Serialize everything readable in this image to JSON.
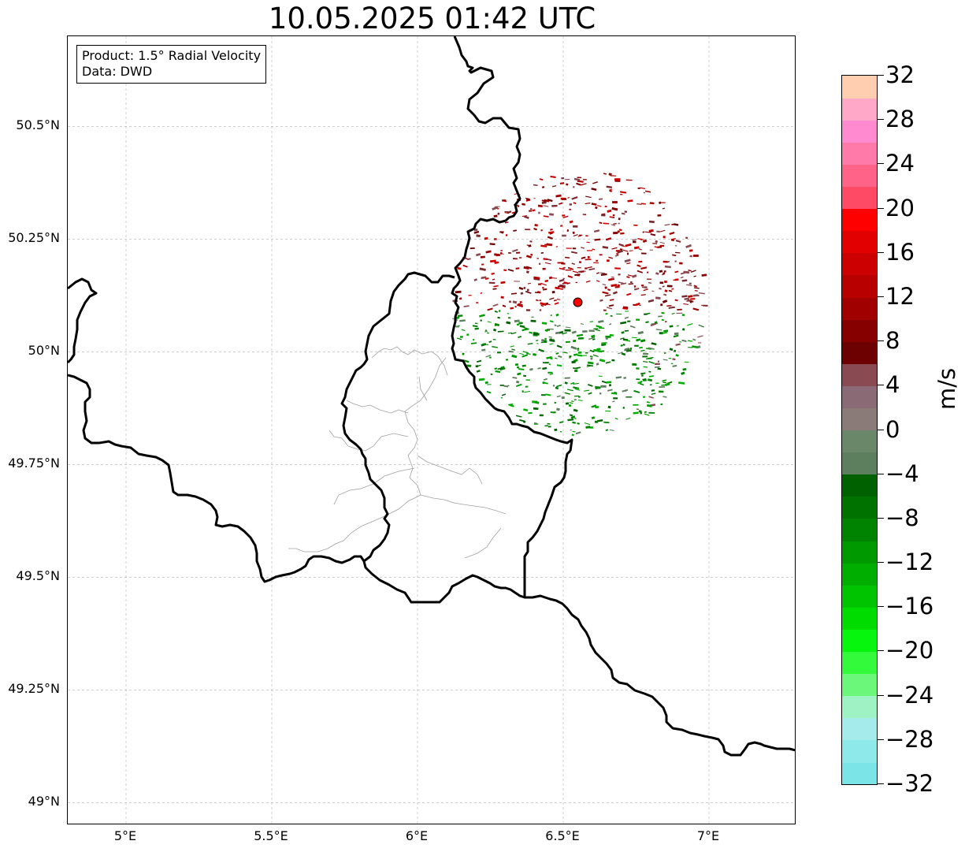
{
  "title": "10.05.2025 01:42 UTC",
  "info_box": {
    "product": "Product: 1.5° Radial Velocity",
    "data": "Data: DWD"
  },
  "map": {
    "lon_range": [
      4.8,
      7.3
    ],
    "lat_range": [
      48.95,
      50.7
    ],
    "lat_ticks": [
      {
        "value": 50.5,
        "label": "50.5°N"
      },
      {
        "value": 50.25,
        "label": "50.25°N"
      },
      {
        "value": 50.0,
        "label": "50°N"
      },
      {
        "value": 49.75,
        "label": "49.75°N"
      },
      {
        "value": 49.5,
        "label": "49.5°N"
      },
      {
        "value": 49.25,
        "label": "49.25°N"
      },
      {
        "value": 49.0,
        "label": "49°N"
      }
    ],
    "lon_ticks": [
      {
        "value": 5.0,
        "label": "5°E"
      },
      {
        "value": 5.5,
        "label": "5.5°E"
      },
      {
        "value": 6.0,
        "label": "6°E"
      },
      {
        "value": 6.5,
        "label": "6.5°E"
      },
      {
        "value": 7.0,
        "label": "7°E"
      }
    ],
    "radar_site": {
      "lon": 6.55,
      "lat": 50.11,
      "color": "#ff0000"
    },
    "grid_color": "#b0b0b0",
    "border_color": "#000000",
    "admin_color": "#a0a0a0"
  },
  "colorbar": {
    "unit": "m/s",
    "min": -32,
    "max": 32,
    "tick_labels": [
      "32",
      "28",
      "24",
      "20",
      "16",
      "12",
      "8",
      "4",
      "0",
      "−4",
      "−8",
      "−12",
      "−16",
      "−20",
      "−24",
      "−28",
      "−32"
    ],
    "colors_bottom_to_top": [
      "#7ae4e6",
      "#8ee9ea",
      "#a6ebec",
      "#9ef2c4",
      "#6af77a",
      "#33fa3a",
      "#06f60e",
      "#00db00",
      "#00c400",
      "#00ae00",
      "#009900",
      "#008400",
      "#007200",
      "#006100",
      "#5e7f5e",
      "#6a876a",
      "#8a7a78",
      "#8a6a74",
      "#8a4a52",
      "#6d0000",
      "#860000",
      "#a00000",
      "#b80000",
      "#cc0000",
      "#e30000",
      "#ff0000",
      "#ff4a66",
      "#ff6388",
      "#ff7aa8",
      "#ff8ad0",
      "#ffa8c8",
      "#ffcdb0"
    ]
  }
}
